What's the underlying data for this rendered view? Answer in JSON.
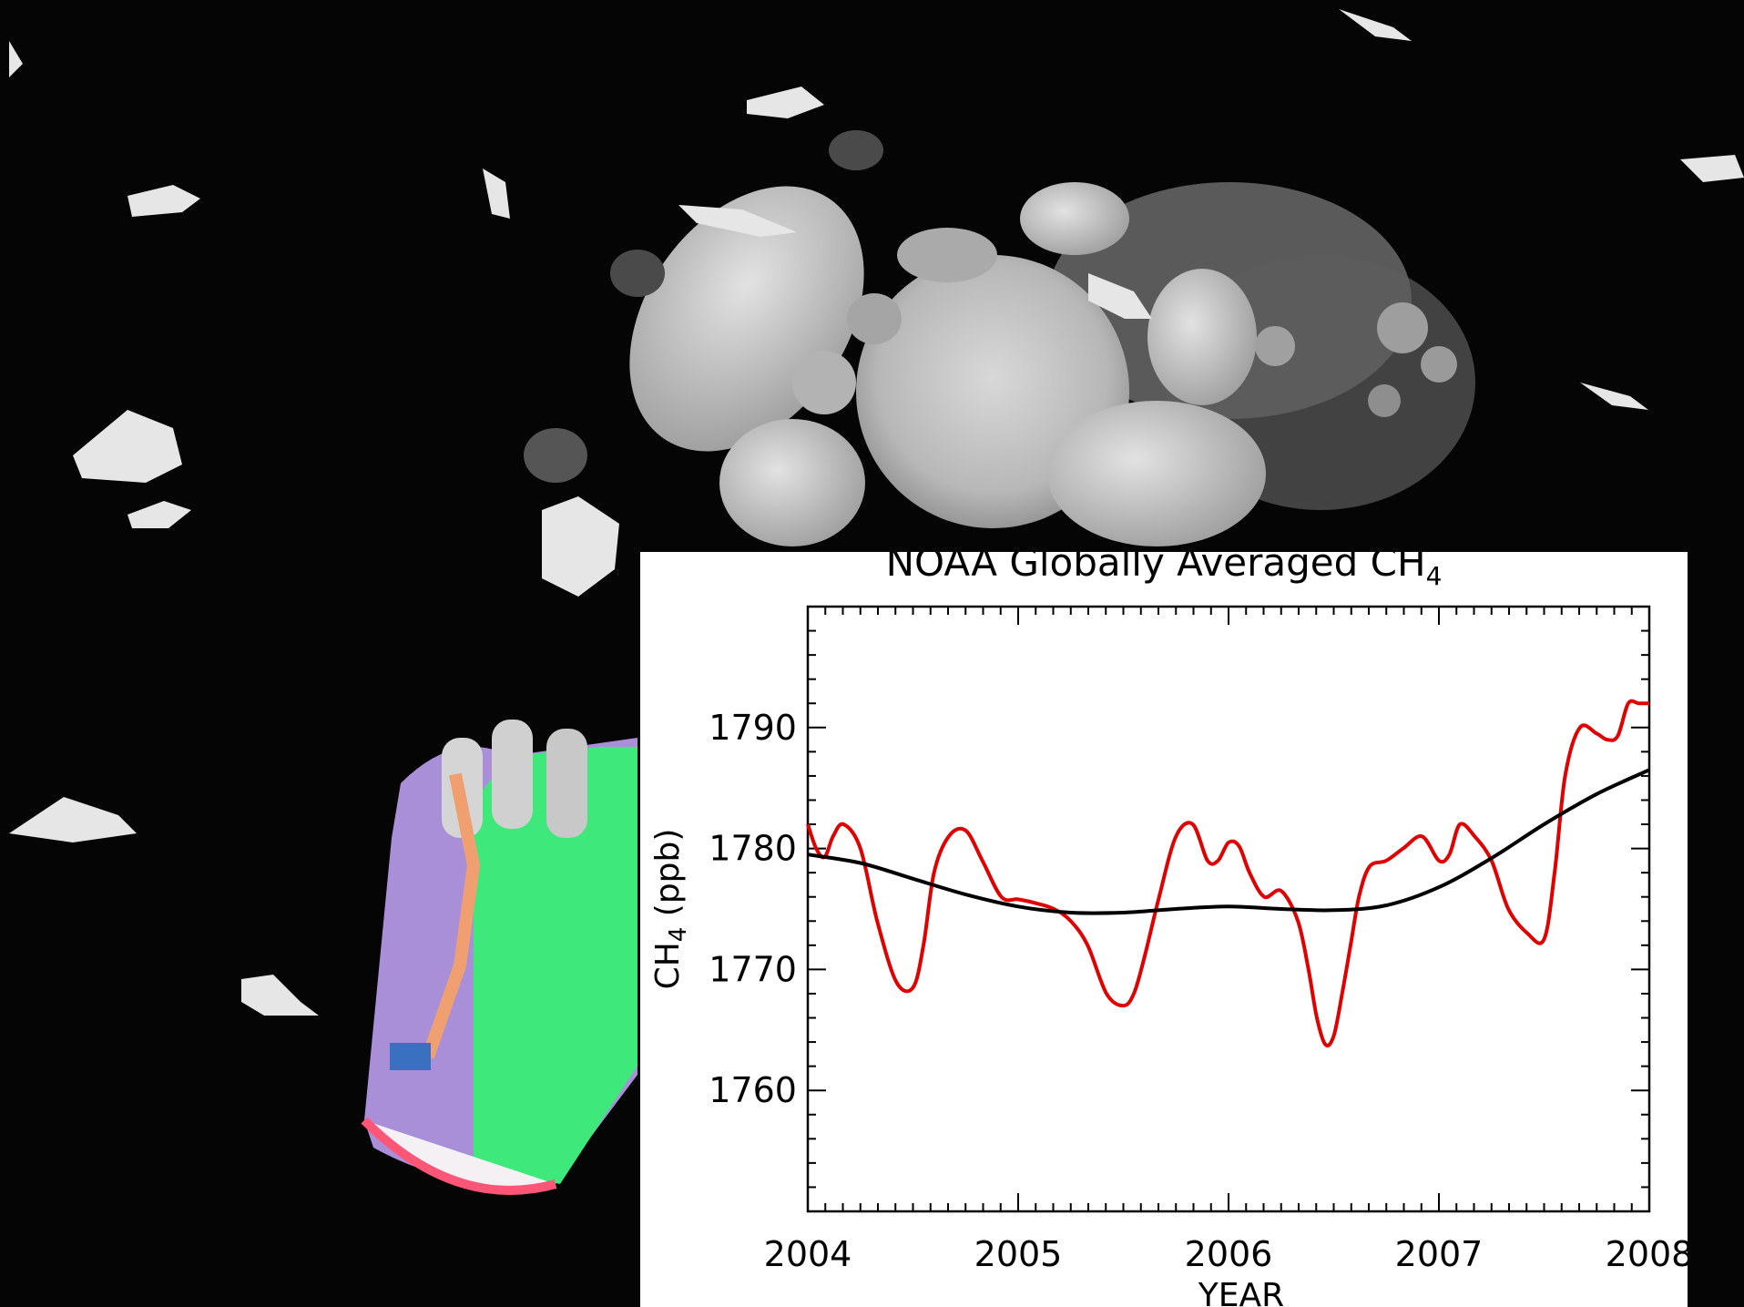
{
  "photo": {
    "subject": "methane bubbles frozen in lake ice with a glove for scale",
    "colors": {
      "ice": "#cfcfcf",
      "background": "#050505",
      "glove_green": "#3fe87a",
      "glove_purple": "#a98fd8"
    }
  },
  "chart_data": {
    "type": "line",
    "title": "NOAA Globally Averaged CH",
    "title_subscript": "4",
    "xlabel": "YEAR",
    "ylabel": "CH",
    "ylabel_subscript": "4",
    "ylabel_unit": " (ppb)",
    "xlim": [
      2004.0,
      2008.0
    ],
    "ylim": [
      1750,
      1800
    ],
    "xticks": [
      2004,
      2005,
      2006,
      2007,
      2008
    ],
    "yticks": [
      1760,
      1770,
      1780,
      1790
    ],
    "grid": false,
    "series": [
      {
        "color": "#e00000",
        "x": [
          2004.0,
          2004.04,
          2004.08,
          2004.12,
          2004.17,
          2004.25,
          2004.33,
          2004.42,
          2004.5,
          2004.55,
          2004.6,
          2004.67,
          2004.75,
          2004.83,
          2004.92,
          2005.0,
          2005.08,
          2005.17,
          2005.25,
          2005.33,
          2005.42,
          2005.5,
          2005.55,
          2005.6,
          2005.67,
          2005.75,
          2005.83,
          2005.9,
          2005.95,
          2006.0,
          2006.05,
          2006.1,
          2006.17,
          2006.25,
          2006.33,
          2006.38,
          2006.42,
          2006.46,
          2006.5,
          2006.54,
          2006.58,
          2006.62,
          2006.67,
          2006.75,
          2006.83,
          2006.92,
          2007.0,
          2007.05,
          2007.1,
          2007.17,
          2007.25,
          2007.33,
          2007.42,
          2007.5,
          2007.55,
          2007.6,
          2007.67,
          2007.75,
          2007.8,
          2007.85,
          2007.9,
          2007.95,
          2008.0
        ],
        "y": [
          1782,
          1780,
          1779.3,
          1781,
          1782,
          1780,
          1774,
          1769,
          1768.5,
          1772,
          1778,
          1781,
          1781.5,
          1779,
          1776,
          1775.8,
          1775.5,
          1775,
          1774,
          1772,
          1768,
          1767,
          1768,
          1771,
          1776,
          1781,
          1782,
          1779,
          1779,
          1780.5,
          1780.2,
          1778,
          1776,
          1776.5,
          1774,
          1770,
          1766,
          1763.8,
          1764.5,
          1768,
          1772,
          1776,
          1778.5,
          1779,
          1780,
          1781,
          1779,
          1779.5,
          1782,
          1781,
          1779,
          1775,
          1773,
          1772.5,
          1778,
          1786,
          1790,
          1789.5,
          1789,
          1789.3,
          1792,
          1792,
          1792
        ]
      },
      {
        "color": "#000000",
        "x": [
          2004.0,
          2004.25,
          2004.5,
          2004.75,
          2005.0,
          2005.25,
          2005.5,
          2005.75,
          2006.0,
          2006.25,
          2006.5,
          2006.75,
          2007.0,
          2007.25,
          2007.5,
          2007.75,
          2008.0
        ],
        "y": [
          1779.5,
          1778.8,
          1777.5,
          1776.2,
          1775.2,
          1774.7,
          1774.7,
          1775.0,
          1775.2,
          1775.0,
          1774.9,
          1775.3,
          1776.8,
          1779.2,
          1782.0,
          1784.5,
          1786.5
        ]
      }
    ]
  }
}
